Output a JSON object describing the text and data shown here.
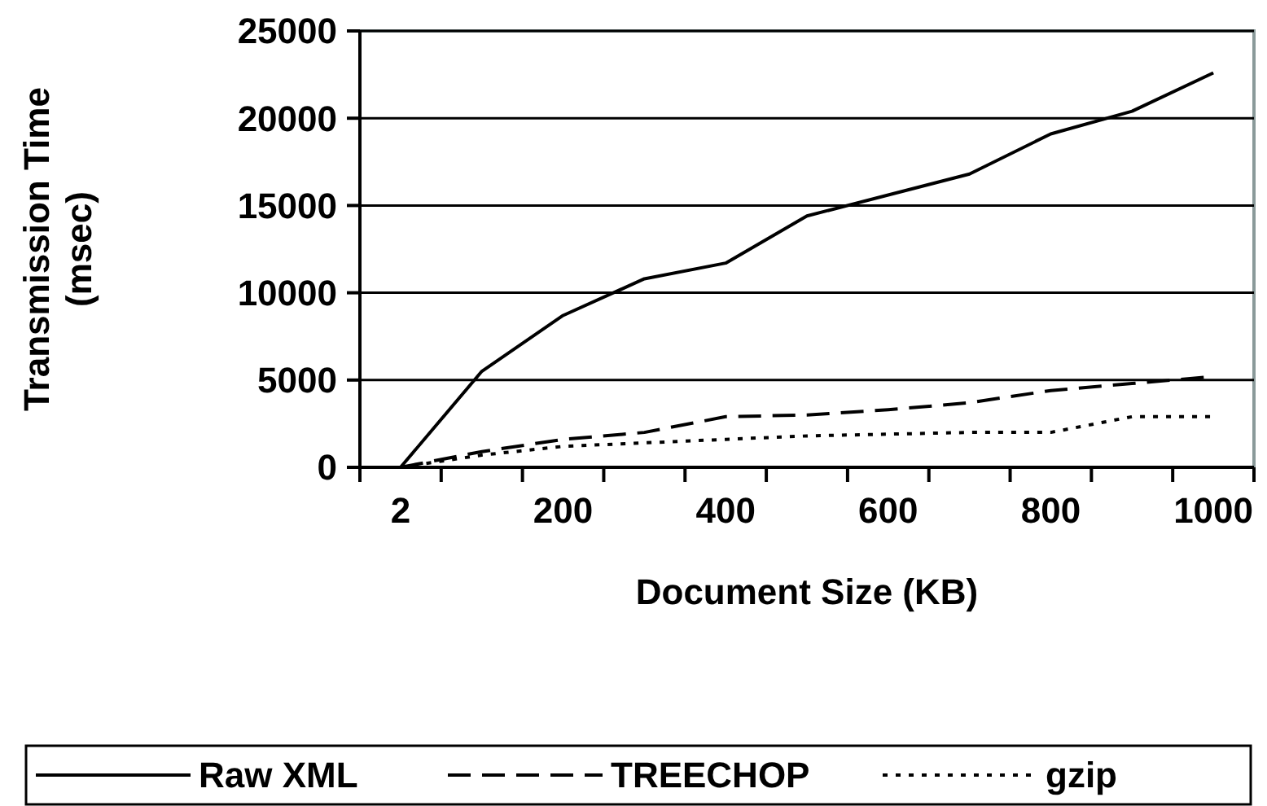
{
  "chart_data": {
    "type": "line",
    "xlabel": "Document Size (KB)",
    "ylabel": "Transmission Time (msec)",
    "categories": [
      "2",
      null,
      "200",
      null,
      "400",
      null,
      "600",
      null,
      "800",
      null,
      "1000"
    ],
    "ylim": [
      0,
      25000
    ],
    "yticks": [
      0,
      5000,
      10000,
      15000,
      20000,
      25000
    ],
    "grid": "y",
    "legend": "bottom",
    "marker": "none",
    "series": [
      {
        "name": "Raw XML",
        "color": "#000000",
        "line_style": "solid",
        "values": [
          0,
          5500,
          8700,
          10800,
          11700,
          14400,
          15600,
          16800,
          19100,
          20400,
          22600
        ]
      },
      {
        "name": "TREECHOP",
        "color": "#000000",
        "line_style": "dashed",
        "values": [
          0,
          900,
          1600,
          2000,
          2900,
          3000,
          3300,
          3700,
          4400,
          4800,
          5200
        ]
      },
      {
        "name": "gzip",
        "color": "#000000",
        "line_style": "dotted",
        "values": [
          0,
          700,
          1200,
          1400,
          1600,
          1800,
          1900,
          2000,
          2000,
          2900,
          2900
        ]
      }
    ]
  }
}
